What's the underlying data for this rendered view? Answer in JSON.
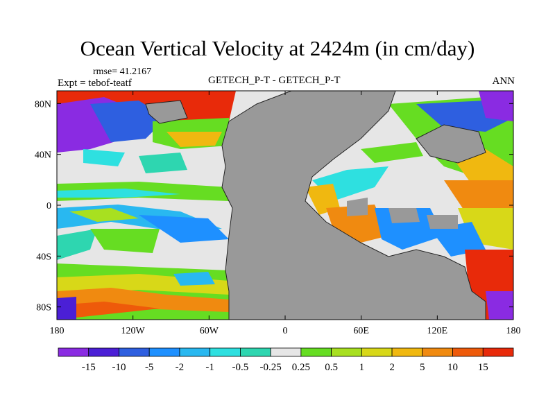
{
  "title": "Ocean Vertical Velocity at 2424m (in cm/day)",
  "rmse": "rmse= 41.2167",
  "expt": "Expt = tebof-teatf",
  "center_label": "GETECH_P-T - GETECH_P-T",
  "season": "ANN",
  "lon_ticks": [
    "180",
    "120W",
    "60W",
    "0",
    "60E",
    "120E",
    "180"
  ],
  "lat_ticks": [
    "80N",
    "40N",
    "0",
    "40S",
    "80S"
  ],
  "lon_tick_values": [
    -180,
    -120,
    -60,
    0,
    60,
    120,
    180
  ],
  "lat_tick_values": [
    80,
    40,
    0,
    -40,
    -80
  ],
  "map_extent": {
    "lon": [
      -180,
      180
    ],
    "lat": [
      -90,
      90
    ]
  },
  "colors": {
    "land": "#999999",
    "coast": "#222222",
    "palette": [
      "#8a2be2",
      "#4b1fd6",
      "#2e5fe0",
      "#1e90ff",
      "#29b8f0",
      "#2ee0e0",
      "#2ed6b0",
      "#e6e6e6",
      "#66dd22",
      "#a8e020",
      "#d8d818",
      "#f0b810",
      "#f08a10",
      "#ee5a0a",
      "#e82a0a"
    ]
  },
  "colorbar": {
    "levels": [
      "-15",
      "-10",
      "-5",
      "-2",
      "-1",
      "-0.5",
      "-0.25",
      "0.25",
      "0.5",
      "1",
      "2",
      "5",
      "10",
      "15"
    ]
  }
}
